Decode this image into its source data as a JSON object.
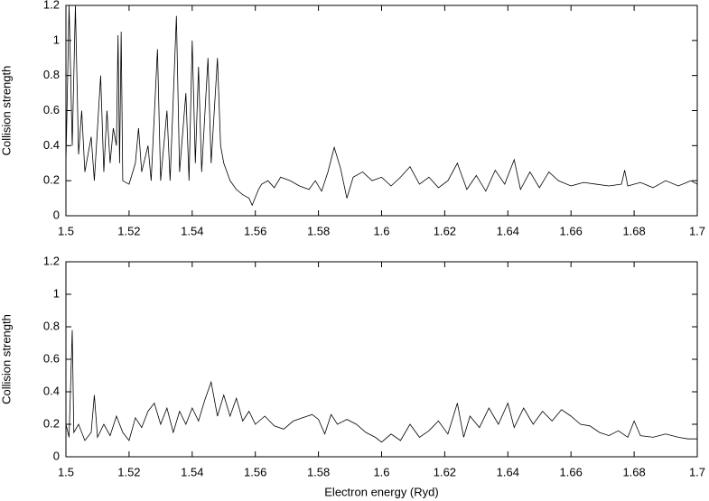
{
  "chart_data": [
    {
      "type": "line",
      "ylabel": "Collision strength",
      "color": "#000000",
      "x": [
        1.5,
        1.501,
        1.502,
        1.503,
        1.504,
        1.505,
        1.506,
        1.508,
        1.509,
        1.511,
        1.512,
        1.513,
        1.514,
        1.515,
        1.516,
        1.5165,
        1.517,
        1.5175,
        1.518,
        1.52,
        1.522,
        1.523,
        1.524,
        1.526,
        1.527,
        1.529,
        1.53,
        1.532,
        1.533,
        1.535,
        1.536,
        1.538,
        1.539,
        1.54,
        1.541,
        1.542,
        1.543,
        1.545,
        1.546,
        1.548,
        1.549,
        1.55,
        1.552,
        1.554,
        1.556,
        1.558,
        1.559,
        1.561,
        1.562,
        1.564,
        1.566,
        1.568,
        1.571,
        1.574,
        1.577,
        1.579,
        1.581,
        1.583,
        1.585,
        1.587,
        1.589,
        1.591,
        1.594,
        1.597,
        1.6,
        1.603,
        1.606,
        1.609,
        1.612,
        1.615,
        1.618,
        1.621,
        1.624,
        1.627,
        1.63,
        1.633,
        1.636,
        1.639,
        1.642,
        1.644,
        1.647,
        1.65,
        1.653,
        1.656,
        1.66,
        1.664,
        1.668,
        1.672,
        1.676,
        1.677,
        1.678,
        1.682,
        1.686,
        1.69,
        1.694,
        1.698,
        1.7
      ],
      "values": [
        0.3,
        1.2,
        0.4,
        1.2,
        0.35,
        0.6,
        0.25,
        0.45,
        0.2,
        0.8,
        0.25,
        0.6,
        0.3,
        0.5,
        0.4,
        1.03,
        0.3,
        1.05,
        0.2,
        0.18,
        0.3,
        0.5,
        0.25,
        0.4,
        0.2,
        0.95,
        0.2,
        0.6,
        0.2,
        1.14,
        0.25,
        0.7,
        0.2,
        1.0,
        0.3,
        0.85,
        0.25,
        0.9,
        0.3,
        0.9,
        0.4,
        0.3,
        0.2,
        0.15,
        0.12,
        0.1,
        0.06,
        0.15,
        0.18,
        0.2,
        0.16,
        0.22,
        0.2,
        0.17,
        0.15,
        0.2,
        0.14,
        0.25,
        0.39,
        0.27,
        0.1,
        0.22,
        0.25,
        0.2,
        0.22,
        0.17,
        0.22,
        0.28,
        0.18,
        0.22,
        0.16,
        0.2,
        0.3,
        0.15,
        0.23,
        0.14,
        0.26,
        0.18,
        0.32,
        0.15,
        0.25,
        0.16,
        0.25,
        0.2,
        0.17,
        0.19,
        0.18,
        0.17,
        0.18,
        0.26,
        0.17,
        0.19,
        0.16,
        0.2,
        0.17,
        0.2,
        0.18
      ],
      "xlim": [
        1.5,
        1.7
      ],
      "xticks": [
        1.5,
        1.52,
        1.54,
        1.56,
        1.58,
        1.6,
        1.62,
        1.64,
        1.66,
        1.68,
        1.7
      ],
      "ylim": [
        0,
        1.2
      ],
      "yticks": [
        0,
        0.2,
        0.4,
        0.6,
        0.8,
        1,
        1.2
      ]
    },
    {
      "type": "line",
      "ylabel": "Collision strength",
      "xlabel": "Electron energy (Ryd)",
      "color": "#000000",
      "x": [
        1.5,
        1.501,
        1.502,
        1.5025,
        1.504,
        1.506,
        1.508,
        1.509,
        1.51,
        1.512,
        1.514,
        1.516,
        1.518,
        1.52,
        1.522,
        1.524,
        1.526,
        1.528,
        1.53,
        1.532,
        1.534,
        1.536,
        1.538,
        1.54,
        1.542,
        1.544,
        1.546,
        1.548,
        1.55,
        1.552,
        1.554,
        1.556,
        1.558,
        1.56,
        1.563,
        1.566,
        1.569,
        1.572,
        1.575,
        1.578,
        1.58,
        1.582,
        1.584,
        1.586,
        1.589,
        1.592,
        1.595,
        1.598,
        1.6,
        1.603,
        1.606,
        1.609,
        1.612,
        1.615,
        1.618,
        1.621,
        1.624,
        1.626,
        1.628,
        1.631,
        1.634,
        1.637,
        1.64,
        1.642,
        1.645,
        1.648,
        1.651,
        1.654,
        1.657,
        1.66,
        1.663,
        1.666,
        1.669,
        1.672,
        1.675,
        1.678,
        1.68,
        1.682,
        1.686,
        1.69,
        1.694,
        1.697,
        1.7
      ],
      "values": [
        0.2,
        0.12,
        0.78,
        0.15,
        0.2,
        0.1,
        0.15,
        0.38,
        0.12,
        0.2,
        0.13,
        0.25,
        0.15,
        0.1,
        0.24,
        0.18,
        0.28,
        0.33,
        0.2,
        0.3,
        0.15,
        0.28,
        0.2,
        0.3,
        0.22,
        0.35,
        0.46,
        0.25,
        0.38,
        0.25,
        0.36,
        0.22,
        0.28,
        0.2,
        0.25,
        0.19,
        0.17,
        0.22,
        0.24,
        0.26,
        0.23,
        0.14,
        0.26,
        0.2,
        0.23,
        0.2,
        0.15,
        0.12,
        0.09,
        0.14,
        0.1,
        0.2,
        0.12,
        0.16,
        0.22,
        0.14,
        0.33,
        0.12,
        0.25,
        0.18,
        0.3,
        0.2,
        0.33,
        0.18,
        0.3,
        0.2,
        0.28,
        0.22,
        0.29,
        0.25,
        0.2,
        0.19,
        0.15,
        0.13,
        0.16,
        0.12,
        0.22,
        0.13,
        0.12,
        0.14,
        0.12,
        0.11,
        0.11
      ],
      "xlim": [
        1.5,
        1.7
      ],
      "xticks": [
        1.5,
        1.52,
        1.54,
        1.56,
        1.58,
        1.6,
        1.62,
        1.64,
        1.66,
        1.68,
        1.7
      ],
      "ylim": [
        0,
        1.2
      ],
      "yticks": [
        0,
        0.2,
        0.4,
        0.6,
        0.8,
        1,
        1.2
      ]
    }
  ]
}
